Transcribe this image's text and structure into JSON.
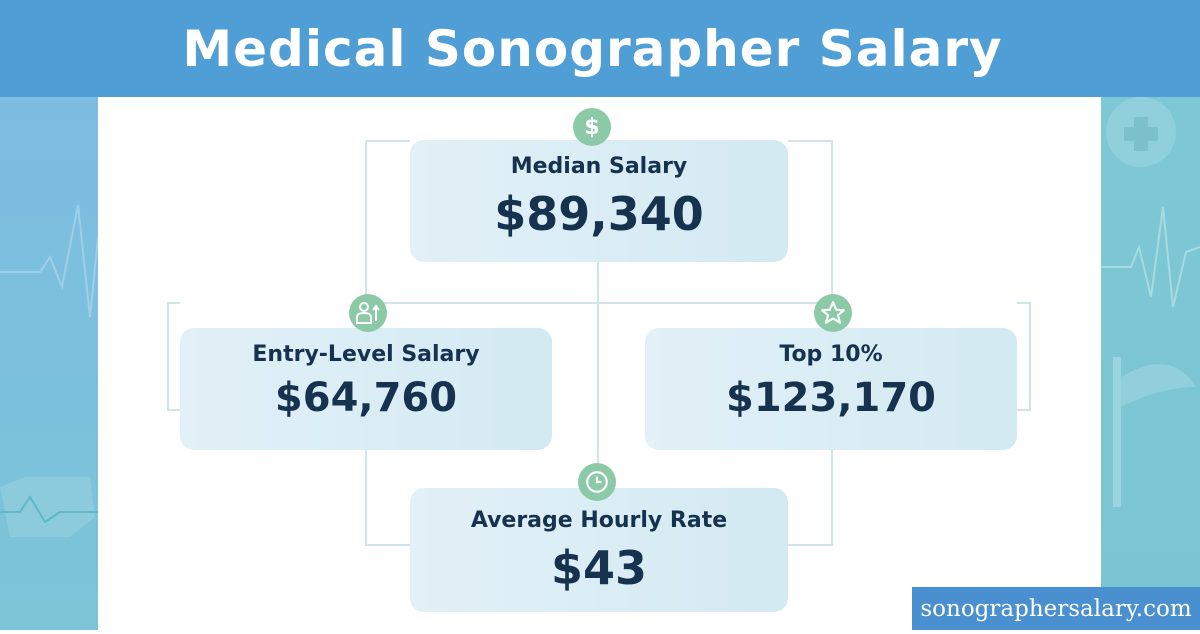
{
  "title": "Medical Sonographer Salary",
  "cards": [
    {
      "label": "Median Salary",
      "value": "$89,340",
      "icon": "dollar-icon"
    },
    {
      "label": "Entry-Level Salary",
      "value": "$64,760",
      "icon": "person-up-icon"
    },
    {
      "label": "Top 10%",
      "value": "$123,170",
      "icon": "star-icon"
    },
    {
      "label": "Average Hourly Rate",
      "value": "$43",
      "icon": "clock-icon"
    }
  ],
  "footer": "sonographersalary.com",
  "colors": {
    "header": "#4f9fd6",
    "icon_bg": "#8ccaa7",
    "text": "#16324f",
    "footer": "#4a90d0"
  }
}
